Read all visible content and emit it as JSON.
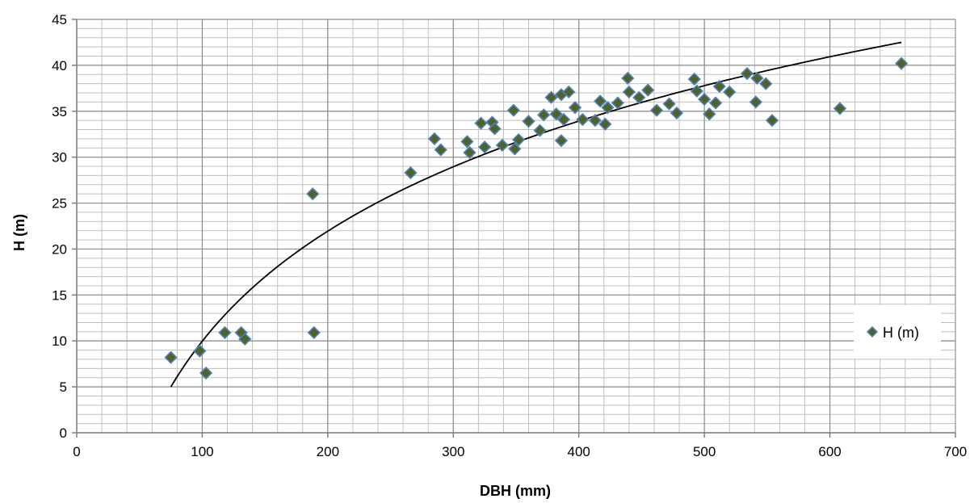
{
  "chart_data": {
    "type": "scatter",
    "title": "",
    "xlabel": "DBH (mm)",
    "ylabel": "H (m)",
    "xlim": [
      0,
      700
    ],
    "ylim": [
      0,
      45
    ],
    "x_ticks": [
      0,
      100,
      200,
      300,
      400,
      500,
      600,
      700
    ],
    "y_ticks": [
      0,
      5,
      10,
      15,
      20,
      25,
      30,
      35,
      40,
      45
    ],
    "grid": true,
    "legend_position": "right",
    "series": [
      {
        "name": "H (m)",
        "marker": "diamond",
        "color": "#4F6228",
        "edge_color": "#4F81BD",
        "points": [
          [
            75,
            8.2
          ],
          [
            98,
            8.9
          ],
          [
            103,
            6.5
          ],
          [
            118,
            10.9
          ],
          [
            131,
            10.9
          ],
          [
            134,
            10.2
          ],
          [
            188,
            26.0
          ],
          [
            189,
            10.9
          ],
          [
            266,
            28.3
          ],
          [
            285,
            32.0
          ],
          [
            290,
            30.8
          ],
          [
            311,
            31.7
          ],
          [
            313,
            30.5
          ],
          [
            322,
            33.7
          ],
          [
            325,
            31.1
          ],
          [
            331,
            33.8
          ],
          [
            333,
            33.1
          ],
          [
            339,
            31.3
          ],
          [
            348,
            35.1
          ],
          [
            349,
            30.9
          ],
          [
            352,
            31.9
          ],
          [
            360,
            33.9
          ],
          [
            369,
            32.9
          ],
          [
            372,
            34.6
          ],
          [
            378,
            36.5
          ],
          [
            382,
            34.7
          ],
          [
            386,
            36.8
          ],
          [
            386,
            31.8
          ],
          [
            388,
            34.1
          ],
          [
            392,
            37.1
          ],
          [
            397,
            35.4
          ],
          [
            403,
            34.1
          ],
          [
            413,
            34.0
          ],
          [
            417,
            36.1
          ],
          [
            421,
            33.6
          ],
          [
            423,
            35.4
          ],
          [
            431,
            35.9
          ],
          [
            439,
            38.6
          ],
          [
            440,
            37.1
          ],
          [
            448,
            36.5
          ],
          [
            455,
            37.3
          ],
          [
            462,
            35.1
          ],
          [
            472,
            35.8
          ],
          [
            478,
            34.8
          ],
          [
            492,
            38.5
          ],
          [
            494,
            37.2
          ],
          [
            500,
            36.3
          ],
          [
            504,
            34.7
          ],
          [
            509,
            35.9
          ],
          [
            512,
            37.7
          ],
          [
            520,
            37.1
          ],
          [
            534,
            39.1
          ],
          [
            541,
            36.0
          ],
          [
            542,
            38.6
          ],
          [
            549,
            38.0
          ],
          [
            554,
            34.0
          ],
          [
            608,
            35.3
          ],
          [
            657,
            40.2
          ]
        ]
      }
    ],
    "trendline": {
      "type": "logarithmic",
      "x_range": [
        75,
        657
      ],
      "y_range": [
        5.0,
        42.5
      ]
    }
  }
}
